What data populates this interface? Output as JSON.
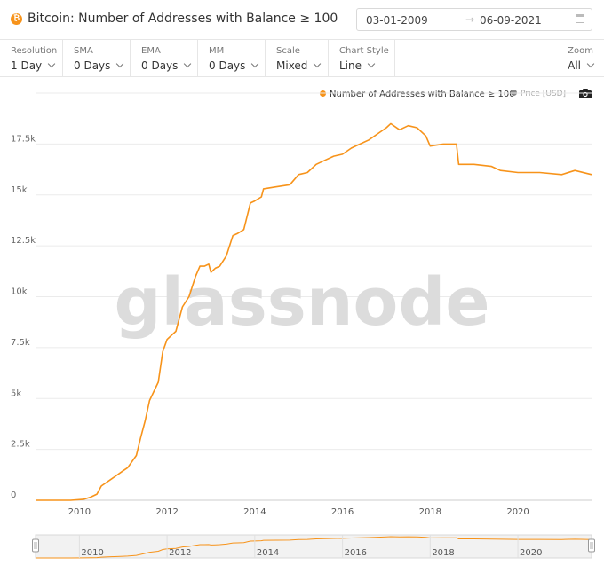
{
  "header": {
    "title": "Bitcoin: Number of Addresses with Balance ≥ 100",
    "coin_symbol": "₿",
    "date_from": "03-01-2009",
    "date_arrow": "→",
    "date_to": "06-09-2021"
  },
  "toolbar": [
    {
      "label": "Resolution",
      "value": "1 Day"
    },
    {
      "label": "SMA",
      "value": "0 Days"
    },
    {
      "label": "EMA",
      "value": "0 Days"
    },
    {
      "label": "MM",
      "value": "0 Days"
    },
    {
      "label": "Scale",
      "value": "Mixed"
    },
    {
      "label": "Chart Style",
      "value": "Line"
    }
  ],
  "zoom": {
    "label": "Zoom",
    "value": "All"
  },
  "legend": {
    "series1": "Number of Addresses with Balance ≥ 100",
    "series2": "Price [USD]"
  },
  "watermark": "glassnode",
  "colors": {
    "series": "#f7931a",
    "price_dot": "#888888",
    "grid": "#ebebeb"
  },
  "chart_data": {
    "type": "line",
    "title": "Bitcoin: Number of Addresses with Balance ≥ 100",
    "xlabel": "",
    "ylabel": "",
    "xlim": [
      2009.0,
      2021.68
    ],
    "ylim": [
      0,
      20000
    ],
    "yticks": [
      0,
      2500,
      5000,
      7500,
      10000,
      12500,
      15000,
      17500
    ],
    "ytick_labels": [
      "0",
      "2.5k",
      "5k",
      "7.5k",
      "10k",
      "12.5k",
      "15k",
      "17.5k"
    ],
    "xticks": [
      2010,
      2012,
      2014,
      2016,
      2018,
      2020
    ],
    "xtick_labels": [
      "2010",
      "2012",
      "2014",
      "2016",
      "2018",
      "2020"
    ],
    "navigator_ticks": [
      "2010",
      "2012",
      "2014",
      "2016",
      "2018",
      "2020"
    ],
    "series": [
      {
        "name": "Number of Addresses with Balance ≥ 100",
        "x": [
          2009.0,
          2009.8,
          2010.1,
          2010.25,
          2010.4,
          2010.5,
          2010.6,
          2010.8,
          2011.0,
          2011.1,
          2011.3,
          2011.4,
          2011.5,
          2011.6,
          2011.8,
          2011.9,
          2012.0,
          2012.1,
          2012.2,
          2012.35,
          2012.5,
          2012.65,
          2012.75,
          2012.85,
          2012.95,
          2013.0,
          2013.1,
          2013.2,
          2013.35,
          2013.5,
          2013.6,
          2013.75,
          2013.9,
          2014.0,
          2014.15,
          2014.2,
          2014.5,
          2014.8,
          2015.0,
          2015.2,
          2015.4,
          2015.6,
          2015.8,
          2016.0,
          2016.2,
          2016.4,
          2016.6,
          2016.8,
          2017.0,
          2017.1,
          2017.3,
          2017.5,
          2017.7,
          2017.9,
          2018.0,
          2018.3,
          2018.6,
          2018.65,
          2019.0,
          2019.4,
          2019.6,
          2020.0,
          2020.5,
          2021.0,
          2021.3,
          2021.68
        ],
        "values": [
          0,
          0,
          50,
          150,
          300,
          700,
          850,
          1150,
          1450,
          1600,
          2200,
          3100,
          3900,
          4900,
          5800,
          7300,
          7900,
          8100,
          8300,
          9500,
          10000,
          11000,
          11500,
          11500,
          11600,
          11200,
          11400,
          11500,
          12000,
          13000,
          13100,
          13300,
          14600,
          14700,
          14900,
          15300,
          15400,
          15500,
          16000,
          16100,
          16500,
          16700,
          16900,
          17000,
          17300,
          17500,
          17700,
          18000,
          18300,
          18500,
          18200,
          18400,
          18300,
          17900,
          17400,
          17500,
          17500,
          16500,
          16500,
          16400,
          16200,
          16100,
          16100,
          16000,
          16200,
          16000
        ]
      }
    ]
  }
}
